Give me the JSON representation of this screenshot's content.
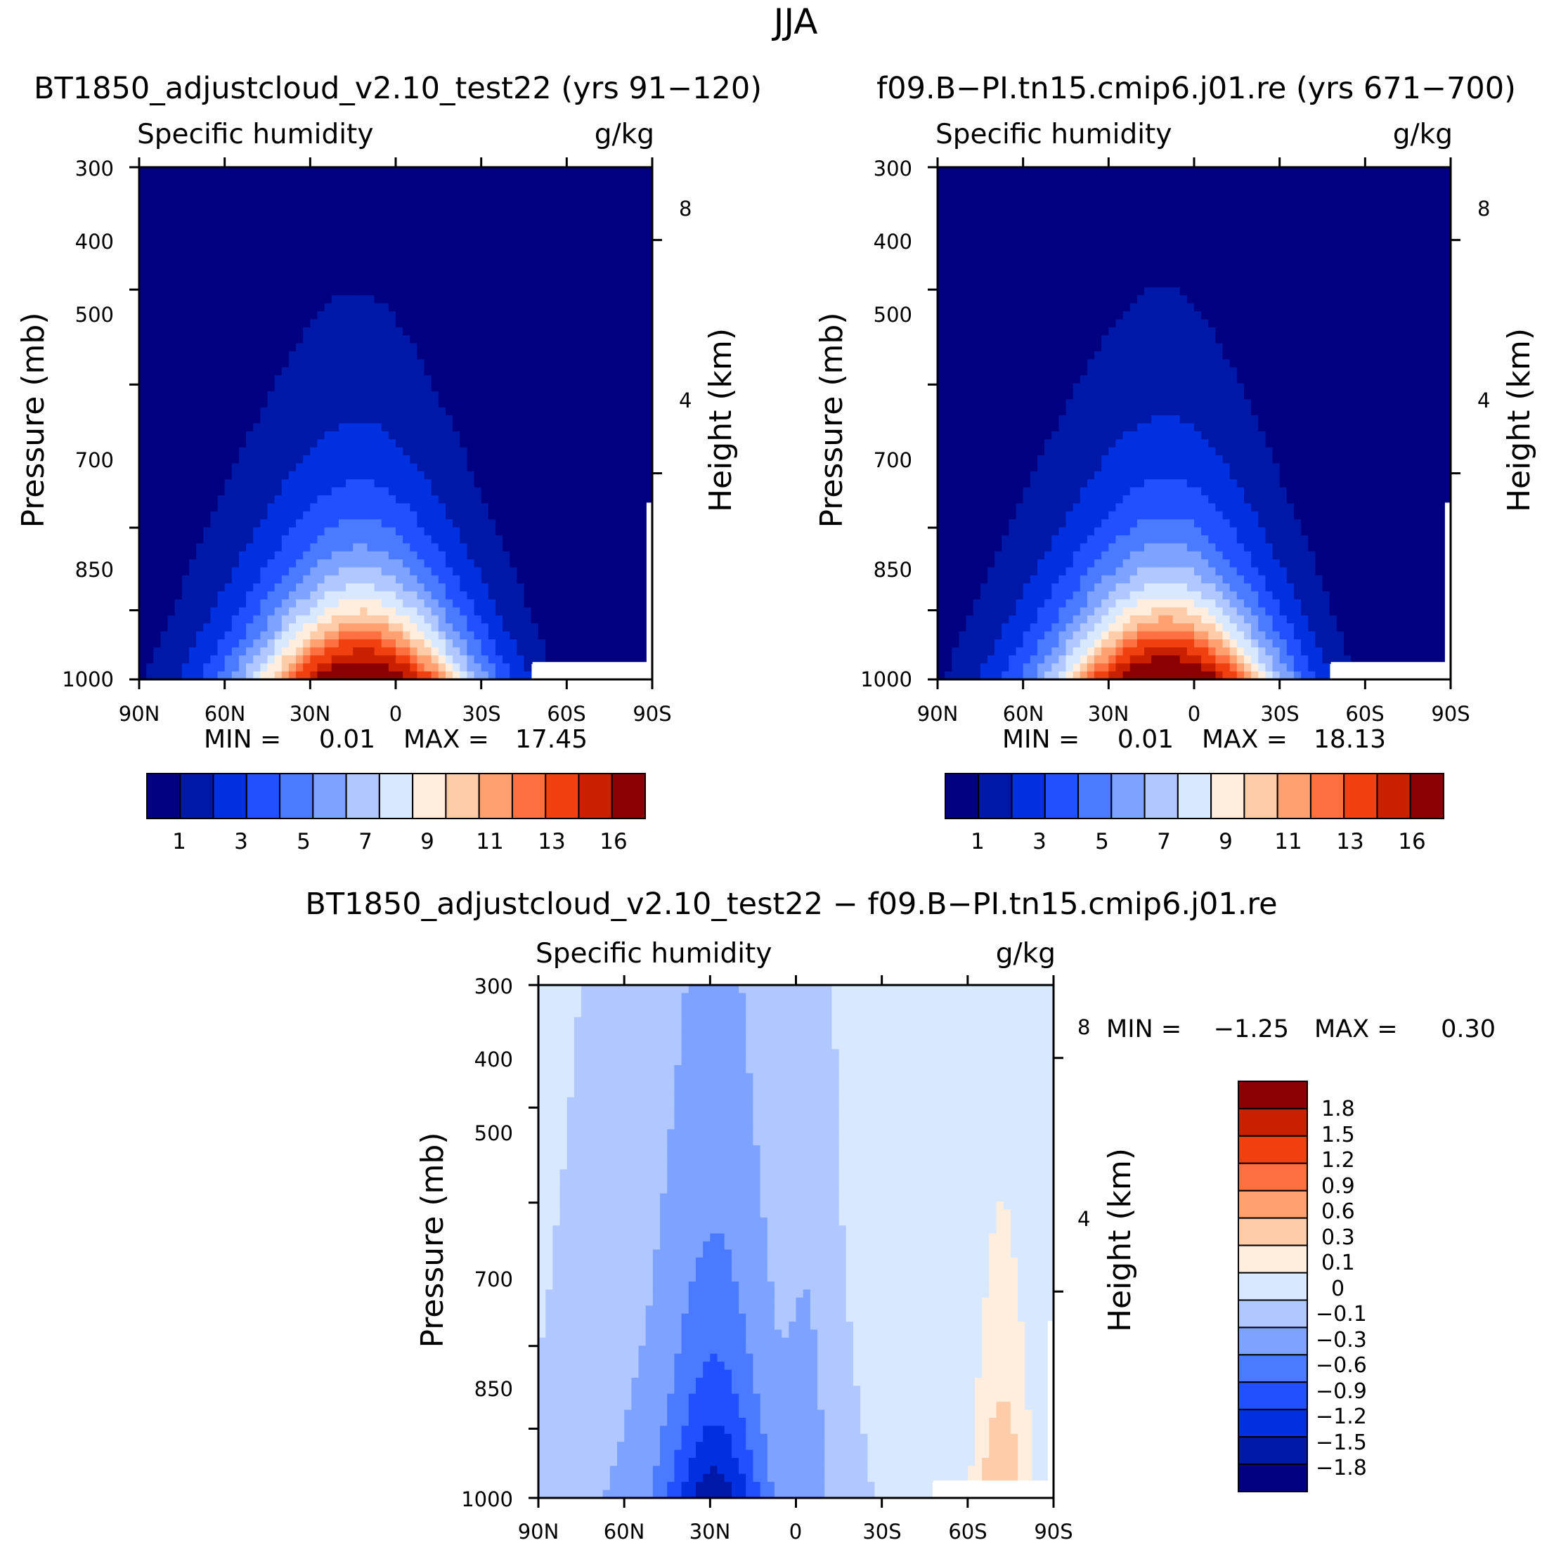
{
  "figure": {
    "season_title": "JJA",
    "colors_abs": [
      "#000080",
      "#0018A8",
      "#0030E0",
      "#2050FF",
      "#4A7AFF",
      "#7DA2FF",
      "#B0C8FF",
      "#D8E8FF",
      "#FFEEDD",
      "#FFCCAA",
      "#FFA070",
      "#FF7040",
      "#F04010",
      "#C82000",
      "#8B0000"
    ],
    "colors_diff": [
      "#000080",
      "#0018A8",
      "#0030E0",
      "#2050FF",
      "#4A7AFF",
      "#7DA2FF",
      "#B0C8FF",
      "#D8E8FF",
      "#FFEEDD",
      "#FFCCAA",
      "#FFA070",
      "#FF7040",
      "#F04010",
      "#C82000",
      "#8B0000"
    ]
  },
  "chart_data": [
    {
      "type": "contour",
      "title": "BT1850_adjustcloud_v2.10_test22 (yrs 91-120)",
      "variable": "Specific humidity",
      "units": "g/kg",
      "xlabel": "",
      "ylabel": "Pressure (mb)",
      "ylabel_right": "Height (km)",
      "x_ticks": [
        "90N",
        "60N",
        "30N",
        "0",
        "30S",
        "60S",
        "90S"
      ],
      "y_ticks": [
        "300",
        "400",
        "500",
        "700",
        "850",
        "1000"
      ],
      "height_ticks": [
        "8",
        "4"
      ],
      "ylim": [
        1000,
        300
      ],
      "min_label": "MIN =",
      "min_value": "0.01",
      "max_label": "MAX =",
      "max_value": "17.45",
      "colorbar_labels": [
        "1",
        "3",
        "5",
        "7",
        "9",
        "11",
        "13",
        "16"
      ],
      "peak_value": 17.45,
      "peak_lat": 10
    },
    {
      "type": "contour",
      "title": "f09.B-PI.tn15.cmip6.j01.re (yrs 671-700)",
      "variable": "Specific humidity",
      "units": "g/kg",
      "xlabel": "",
      "ylabel": "Pressure (mb)",
      "ylabel_right": "Height (km)",
      "x_ticks": [
        "90N",
        "60N",
        "30N",
        "0",
        "30S",
        "60S",
        "90S"
      ],
      "y_ticks": [
        "300",
        "400",
        "500",
        "700",
        "850",
        "1000"
      ],
      "height_ticks": [
        "8",
        "4"
      ],
      "ylim": [
        1000,
        300
      ],
      "min_label": "MIN =",
      "min_value": "0.01",
      "max_label": "MAX =",
      "max_value": "18.13",
      "colorbar_labels": [
        "1",
        "3",
        "5",
        "7",
        "9",
        "11",
        "13",
        "16"
      ],
      "peak_value": 18.13,
      "peak_lat": 8
    },
    {
      "type": "contour",
      "title": "BT1850_adjustcloud_v2.10_test22 - f09.B-PI.tn15.cmip6.j01.re",
      "variable": "Specific humidity",
      "units": "g/kg",
      "xlabel": "",
      "ylabel": "Pressure (mb)",
      "ylabel_right": "Height (km)",
      "x_ticks": [
        "90N",
        "60N",
        "30N",
        "0",
        "30S",
        "60S",
        "90S"
      ],
      "y_ticks": [
        "300",
        "400",
        "500",
        "700",
        "850",
        "1000"
      ],
      "height_ticks": [
        "8",
        "4"
      ],
      "ylim": [
        1000,
        300
      ],
      "min_label": "MIN =",
      "min_value": "-1.25",
      "max_label": "MAX =",
      "max_value": "0.30",
      "colorbar_labels": [
        "1.8",
        "1.5",
        "1.2",
        "0.9",
        "0.6",
        "0.3",
        "0.1",
        "0",
        "-0.1",
        "-0.3",
        "-0.6",
        "-0.9",
        "-1.2",
        "-1.5",
        "-1.8"
      ]
    }
  ]
}
